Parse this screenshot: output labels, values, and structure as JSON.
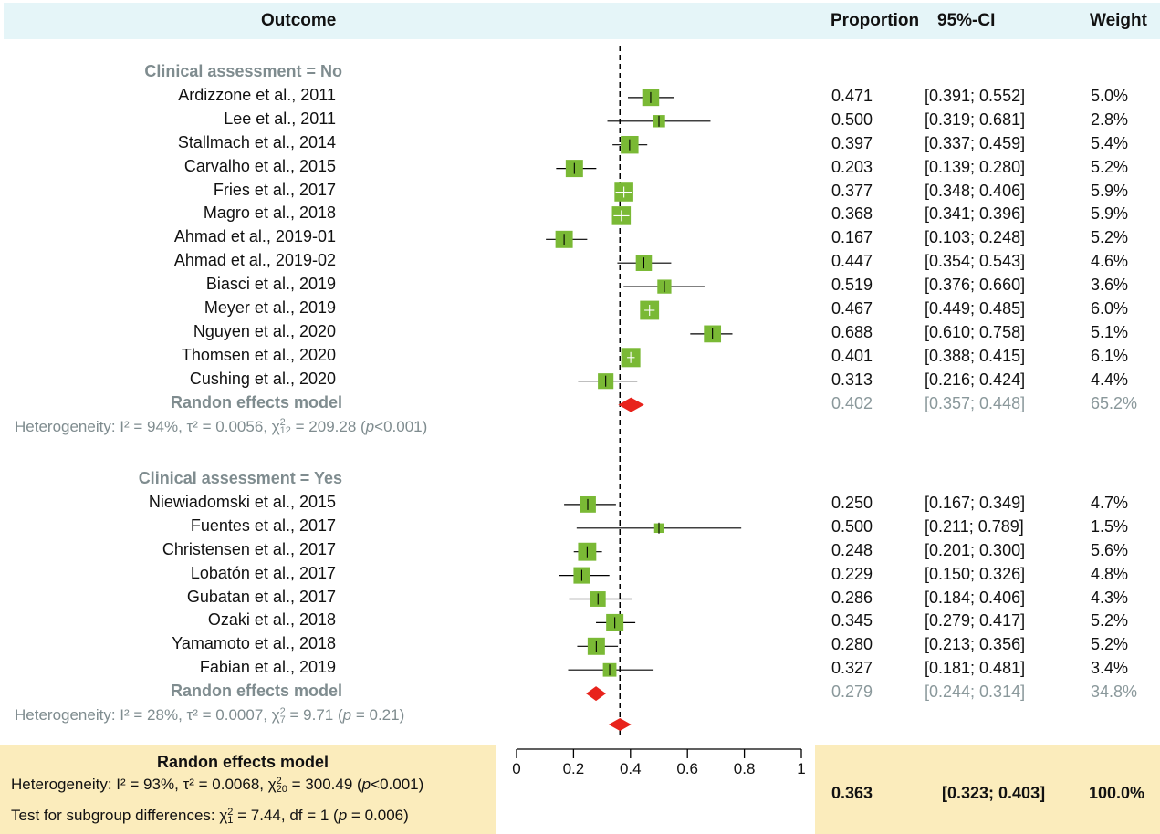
{
  "header": {
    "outcome": "Outcome",
    "proportion": "Proportion",
    "ci": "95%-CI",
    "weight": "Weight"
  },
  "colors": {
    "header_bg": "#e5f5f8",
    "square": "#7ab935",
    "diamond": "#e8231c",
    "gray_text": "#8a989b",
    "overall_bg": "#fbecbc"
  },
  "chart_data": {
    "type": "forest",
    "xlim": [
      0,
      1
    ],
    "x_ticks": [
      "0",
      "0.2",
      "0.4",
      "0.6",
      "0.8",
      "1"
    ],
    "reference_line": 0.363,
    "subgroups": [
      {
        "label": "Clinical assessment = No",
        "studies": [
          {
            "study": "Ardizzone et al., 2011",
            "prop": 0.471,
            "lo": 0.391,
            "hi": 0.552,
            "prop_text": "0.471",
            "ci_text": "[0.391; 0.552]",
            "weight_text": "5.0%",
            "weight": 5.0
          },
          {
            "study": "Lee et al., 2011",
            "prop": 0.5,
            "lo": 0.319,
            "hi": 0.681,
            "prop_text": "0.500",
            "ci_text": "[0.319; 0.681]",
            "weight_text": "2.8%",
            "weight": 2.8
          },
          {
            "study": "Stallmach et al., 2014",
            "prop": 0.397,
            "lo": 0.337,
            "hi": 0.459,
            "prop_text": "0.397",
            "ci_text": "[0.337; 0.459]",
            "weight_text": "5.4%",
            "weight": 5.4
          },
          {
            "study": "Carvalho et al., 2015",
            "prop": 0.203,
            "lo": 0.139,
            "hi": 0.28,
            "prop_text": "0.203",
            "ci_text": "[0.139; 0.280]",
            "weight_text": "5.2%",
            "weight": 5.2
          },
          {
            "study": "Fries et al., 2017",
            "prop": 0.377,
            "lo": 0.348,
            "hi": 0.406,
            "prop_text": "0.377",
            "ci_text": "[0.348; 0.406]",
            "weight_text": "5.9%",
            "weight": 5.9
          },
          {
            "study": "Magro et al., 2018",
            "prop": 0.368,
            "lo": 0.341,
            "hi": 0.396,
            "prop_text": "0.368",
            "ci_text": "[0.341; 0.396]",
            "weight_text": "5.9%",
            "weight": 5.9
          },
          {
            "study": "Ahmad et al., 2019-01",
            "prop": 0.167,
            "lo": 0.103,
            "hi": 0.248,
            "prop_text": "0.167",
            "ci_text": "[0.103; 0.248]",
            "weight_text": "5.2%",
            "weight": 5.2
          },
          {
            "study": "Ahmad et al., 2019-02",
            "prop": 0.447,
            "lo": 0.354,
            "hi": 0.543,
            "prop_text": "0.447",
            "ci_text": "[0.354; 0.543]",
            "weight_text": "4.6%",
            "weight": 4.6
          },
          {
            "study": "Biasci et al., 2019",
            "prop": 0.519,
            "lo": 0.376,
            "hi": 0.66,
            "prop_text": "0.519",
            "ci_text": "[0.376; 0.660]",
            "weight_text": "3.6%",
            "weight": 3.6
          },
          {
            "study": "Meyer et al., 2019",
            "prop": 0.467,
            "lo": 0.449,
            "hi": 0.485,
            "prop_text": "0.467",
            "ci_text": "[0.449; 0.485]",
            "weight_text": "6.0%",
            "weight": 6.0
          },
          {
            "study": "Nguyen et al., 2020",
            "prop": 0.688,
            "lo": 0.61,
            "hi": 0.758,
            "prop_text": "0.688",
            "ci_text": "[0.610; 0.758]",
            "weight_text": "5.1%",
            "weight": 5.1
          },
          {
            "study": "Thomsen et al., 2020",
            "prop": 0.401,
            "lo": 0.388,
            "hi": 0.415,
            "prop_text": "0.401",
            "ci_text": "[0.388; 0.415]",
            "weight_text": "6.1%",
            "weight": 6.1
          },
          {
            "study": "Cushing et al., 2020",
            "prop": 0.313,
            "lo": 0.216,
            "hi": 0.424,
            "prop_text": "0.313",
            "ci_text": "[0.216; 0.424]",
            "weight_text": "4.4%",
            "weight": 4.4
          }
        ],
        "model": {
          "label": "Randon effects model",
          "prop": 0.402,
          "lo": 0.357,
          "hi": 0.448,
          "prop_text": "0.402",
          "ci_text": "[0.357; 0.448]",
          "weight_text": "65.2%"
        },
        "heterogeneity": {
          "prefix": "Heterogeneity: ",
          "i2": "I² = 94%, τ² = 0.0056, χ",
          "sub": "12",
          "sup": "2",
          "rest": " = 209.28 (",
          "p": "p",
          "p_rest": "<0.001)"
        }
      },
      {
        "label": "Clinical assessment = Yes",
        "studies": [
          {
            "study": "Niewiadomski et al., 2015",
            "prop": 0.25,
            "lo": 0.167,
            "hi": 0.349,
            "prop_text": "0.250",
            "ci_text": "[0.167; 0.349]",
            "weight_text": "4.7%",
            "weight": 4.7
          },
          {
            "study": "Fuentes et al., 2017",
            "prop": 0.5,
            "lo": 0.211,
            "hi": 0.789,
            "prop_text": "0.500",
            "ci_text": "[0.211; 0.789]",
            "weight_text": "1.5%",
            "weight": 1.5
          },
          {
            "study": "Christensen et al., 2017",
            "prop": 0.248,
            "lo": 0.201,
            "hi": 0.3,
            "prop_text": "0.248",
            "ci_text": "[0.201; 0.300]",
            "weight_text": "5.6%",
            "weight": 5.6
          },
          {
            "study": "Lobatón et al., 2017",
            "prop": 0.229,
            "lo": 0.15,
            "hi": 0.326,
            "prop_text": "0.229",
            "ci_text": "[0.150; 0.326]",
            "weight_text": "4.8%",
            "weight": 4.8
          },
          {
            "study": "Gubatan et al., 2017",
            "prop": 0.286,
            "lo": 0.184,
            "hi": 0.406,
            "prop_text": "0.286",
            "ci_text": "[0.184; 0.406]",
            "weight_text": "4.3%",
            "weight": 4.3
          },
          {
            "study": "Ozaki et al., 2018",
            "prop": 0.345,
            "lo": 0.279,
            "hi": 0.417,
            "prop_text": "0.345",
            "ci_text": "[0.279; 0.417]",
            "weight_text": "5.2%",
            "weight": 5.2
          },
          {
            "study": "Yamamoto et al., 2018",
            "prop": 0.28,
            "lo": 0.213,
            "hi": 0.356,
            "prop_text": "0.280",
            "ci_text": "[0.213; 0.356]",
            "weight_text": "5.2%",
            "weight": 5.2
          },
          {
            "study": "Fabian et al., 2019",
            "prop": 0.327,
            "lo": 0.181,
            "hi": 0.481,
            "prop_text": "0.327",
            "ci_text": "[0.181; 0.481]",
            "weight_text": "3.4%",
            "weight": 3.4
          }
        ],
        "model": {
          "label": "Randon effects model",
          "prop": 0.279,
          "lo": 0.244,
          "hi": 0.314,
          "prop_text": "0.279",
          "ci_text": "[0.244; 0.314]",
          "weight_text": "34.8%"
        },
        "heterogeneity": {
          "prefix": "Heterogeneity: ",
          "i2": "I² = 28%, τ² = 0.0007, χ",
          "sub": "7",
          "sup": "2",
          "rest": " = 9.71 (",
          "p": "p",
          "p_rest": " = 0.21)"
        }
      }
    ],
    "overall": {
      "label": "Randon effects model",
      "prop": 0.363,
      "lo": 0.323,
      "hi": 0.403,
      "prop_text": "0.363",
      "ci_text": "[0.323; 0.403]",
      "weight_text": "100.0%",
      "heterogeneity": {
        "prefix": "Heterogeneity: ",
        "i2": "I² = 93%, τ² = 0.0068, χ",
        "sub": "20",
        "sup": "2",
        "rest": " = 300.49 (",
        "p": "p",
        "p_rest": "<0.001)"
      },
      "subgroup_test": {
        "prefix": "Test for subgroup differences: χ",
        "sub": "1",
        "sup": "2",
        "rest": " = 7.44, df = 1 (",
        "p": "p",
        "p_rest": " = 0.006)"
      }
    }
  }
}
